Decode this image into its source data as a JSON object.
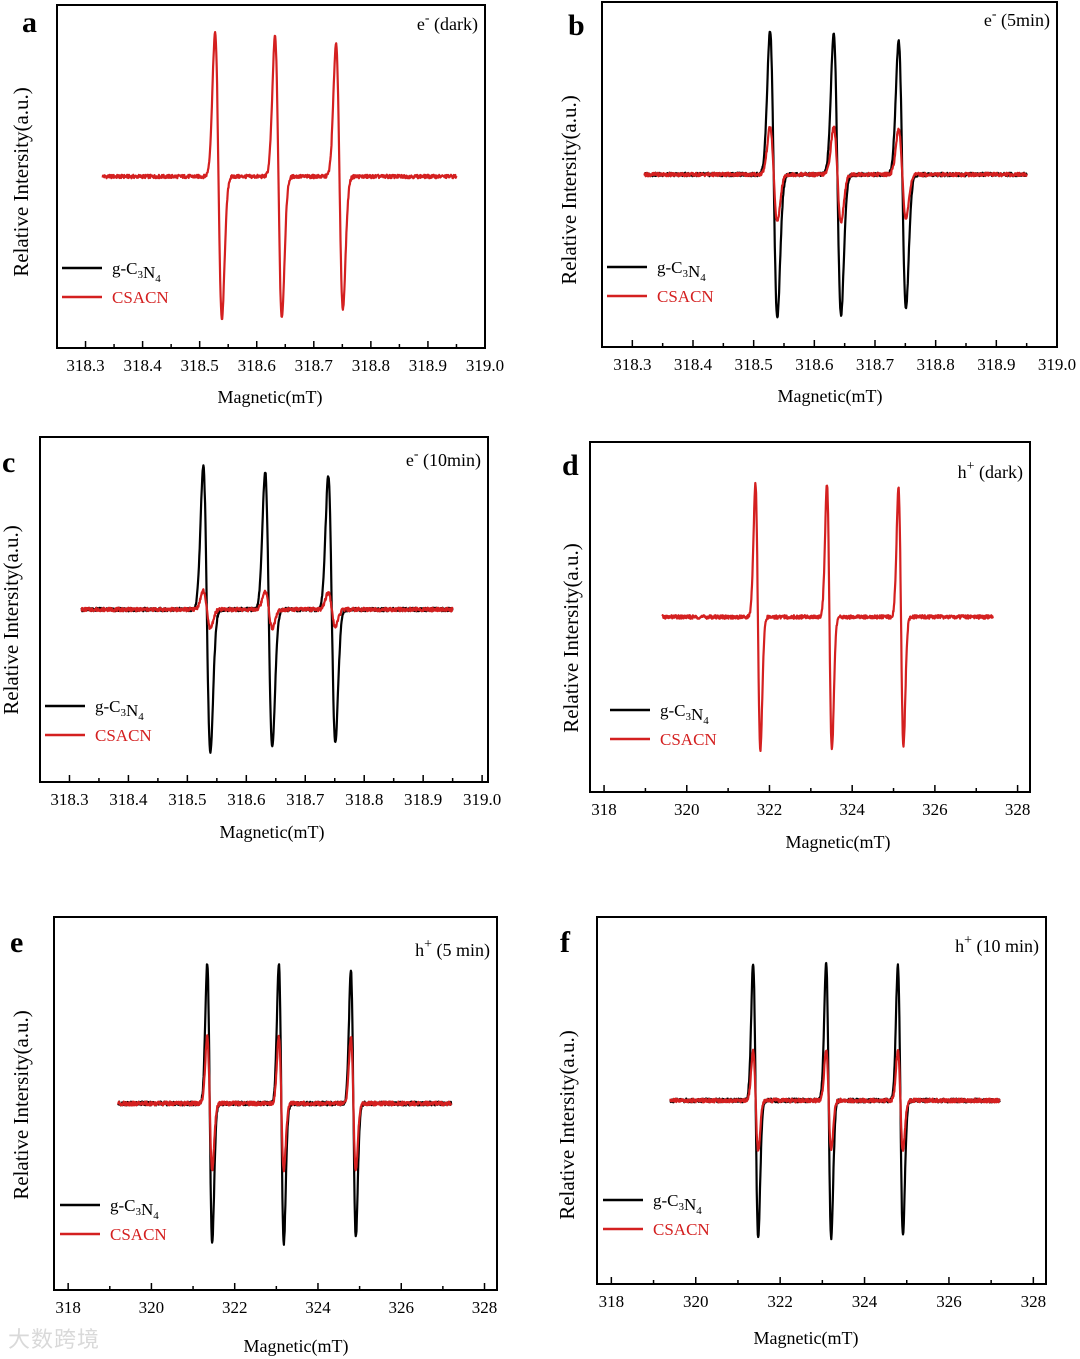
{
  "watermark": "大数跨境",
  "colors": {
    "g-C3N4": "#000000",
    "CSACN": "#d42020"
  },
  "chart_data": [
    {
      "panel": "a",
      "type": "line",
      "tag": {
        "species": "e",
        "charge": "-",
        "condition": "(dark)"
      },
      "xlabel": "Magnetic(mT)",
      "ylabel": "Relative Intersity(a.u.)",
      "xlim": [
        318.25,
        319.0
      ],
      "xticks": [
        "318.3",
        "318.4",
        "318.5",
        "318.6",
        "318.7",
        "318.8",
        "318.9",
        "319.0"
      ],
      "ylim": [
        -1.2,
        1.2
      ],
      "legend": [
        "g-C3N4",
        "CSACN"
      ],
      "legend_position": "bottom-left",
      "series": [
        {
          "name": "g-C3N4",
          "visible": false,
          "x_range": [
            318.33,
            318.95
          ],
          "peak_centers": [
            318.533,
            318.638,
            318.745
          ],
          "width": 0.006,
          "amplitudes": [
            1.0,
            0.98,
            0.93
          ]
        },
        {
          "name": "CSACN",
          "x_range": [
            318.33,
            318.95
          ],
          "peak_centers": [
            318.533,
            318.638,
            318.745
          ],
          "width": 0.006,
          "amplitudes": [
            1.0,
            0.98,
            0.93
          ]
        }
      ]
    },
    {
      "panel": "b",
      "type": "line",
      "tag": {
        "species": "e",
        "charge": "-",
        "condition": "(5min)"
      },
      "xlabel": "Magnetic(mT)",
      "ylabel": "Relative Intersity(a.u.)",
      "xlim": [
        318.25,
        319.0
      ],
      "xticks": [
        "318.3",
        "318.4",
        "318.5",
        "318.6",
        "318.7",
        "318.8",
        "318.9",
        "319.0"
      ],
      "ylim": [
        -1.2,
        1.2
      ],
      "legend": [
        "g-C3N4",
        "CSACN"
      ],
      "legend_position": "bottom-left",
      "series": [
        {
          "name": "g-C3N4",
          "x_range": [
            318.32,
            318.95
          ],
          "peak_centers": [
            318.533,
            318.638,
            318.745
          ],
          "width": 0.006,
          "amplitudes": [
            1.0,
            0.98,
            0.93
          ]
        },
        {
          "name": "CSACN",
          "x_range": [
            318.32,
            318.95
          ],
          "peak_centers": [
            318.533,
            318.638,
            318.745
          ],
          "width": 0.006,
          "amplitudes": [
            0.33,
            0.33,
            0.31
          ]
        }
      ]
    },
    {
      "panel": "c",
      "type": "line",
      "tag": {
        "species": "e",
        "charge": "-",
        "condition": "(10min)"
      },
      "xlabel": "Magnetic(mT)",
      "ylabel": "Relative Intersity(a.u.)",
      "xlim": [
        318.25,
        319.01
      ],
      "xticks": [
        "318.3",
        "318.4",
        "318.5",
        "318.6",
        "318.7",
        "318.8",
        "318.9",
        "319.0"
      ],
      "ylim": [
        -1.2,
        1.2
      ],
      "legend": [
        "g-C3N4",
        "CSACN"
      ],
      "legend_position": "bottom-left",
      "series": [
        {
          "name": "g-C3N4",
          "x_range": [
            318.32,
            318.95
          ],
          "peak_centers": [
            318.533,
            318.638,
            318.745
          ],
          "width": 0.006,
          "amplitudes": [
            1.0,
            0.96,
            0.93
          ]
        },
        {
          "name": "CSACN",
          "x_range": [
            318.32,
            318.95
          ],
          "peak_centers": [
            318.533,
            318.638,
            318.745
          ],
          "width": 0.006,
          "amplitudes": [
            0.13,
            0.13,
            0.12
          ]
        }
      ]
    },
    {
      "panel": "d",
      "type": "line",
      "tag": {
        "species": "h",
        "charge": "+",
        "condition": "(dark)"
      },
      "xlabel": "Magnetic(mT)",
      "ylabel": "Relative Intersity(a.u.)",
      "xlim": [
        317.66,
        328.3
      ],
      "xticks": [
        "318",
        "320",
        "322",
        "324",
        "326",
        "328"
      ],
      "ylim": [
        -1.2,
        1.2
      ],
      "legend": [
        "g-C3N4",
        "CSACN"
      ],
      "legend_position": "bottom-left",
      "series": [
        {
          "name": "g-C3N4",
          "visible": false,
          "x_range": [
            319.4,
            327.4
          ],
          "peak_centers": [
            321.72,
            323.45,
            325.18
          ],
          "width": 0.06,
          "amplitudes": [
            0.91,
            0.91,
            0.88
          ]
        },
        {
          "name": "CSACN",
          "x_range": [
            319.4,
            327.4
          ],
          "peak_centers": [
            321.72,
            323.45,
            325.18
          ],
          "width": 0.06,
          "amplitudes": [
            0.91,
            0.91,
            0.88
          ]
        }
      ]
    },
    {
      "panel": "e",
      "type": "line",
      "tag": {
        "species": "h",
        "charge": "+",
        "condition": "(5 min)"
      },
      "xlabel": "Magnetic(mT)",
      "ylabel": "Relative Intersity(a.u.)",
      "xlim": [
        317.66,
        328.3
      ],
      "xticks": [
        "318",
        "320",
        "322",
        "324",
        "326",
        "328"
      ],
      "ylim": [
        -1.2,
        1.2
      ],
      "legend": [
        "g-C3N4",
        "CSACN"
      ],
      "legend_position": "bottom-left",
      "series": [
        {
          "name": "g-C3N4",
          "x_range": [
            319.2,
            327.2
          ],
          "peak_centers": [
            321.4,
            323.12,
            324.85
          ],
          "width": 0.06,
          "amplitudes": [
            0.9,
            0.9,
            0.86
          ]
        },
        {
          "name": "CSACN",
          "x_range": [
            319.2,
            327.2
          ],
          "peak_centers": [
            321.4,
            323.12,
            324.85
          ],
          "width": 0.06,
          "amplitudes": [
            0.43,
            0.43,
            0.43
          ]
        }
      ]
    },
    {
      "panel": "f",
      "type": "line",
      "tag": {
        "species": "h",
        "charge": "+",
        "condition": "(10 min)"
      },
      "xlabel": "Magnetic(mT)",
      "ylabel": "Relative Intersity(a.u.)",
      "xlim": [
        317.66,
        328.3
      ],
      "xticks": [
        "318",
        "320",
        "322",
        "324",
        "326",
        "328"
      ],
      "ylim": [
        -1.2,
        1.2
      ],
      "legend": [
        "g-C3N4",
        "CSACN"
      ],
      "legend_position": "bottom-left",
      "series": [
        {
          "name": "g-C3N4",
          "x_range": [
            319.4,
            327.2
          ],
          "peak_centers": [
            321.42,
            323.15,
            324.85
          ],
          "width": 0.06,
          "amplitudes": [
            0.9,
            0.9,
            0.88
          ]
        },
        {
          "name": "CSACN",
          "x_range": [
            319.4,
            327.2
          ],
          "peak_centers": [
            321.42,
            323.15,
            324.85
          ],
          "width": 0.06,
          "amplitudes": [
            0.33,
            0.33,
            0.33
          ]
        }
      ]
    }
  ]
}
